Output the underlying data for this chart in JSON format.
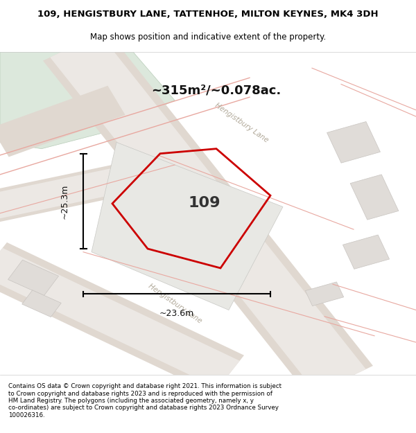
{
  "title_line1": "109, HENGISTBURY LANE, TATTENHOE, MILTON KEYNES, MK4 3DH",
  "title_line2": "Map shows position and indicative extent of the property.",
  "area_text": "~315m²/~0.078ac.",
  "label_109": "109",
  "dim_width": "~23.6m",
  "dim_height": "~25.3m",
  "footer_text": "Contains OS data © Crown copyright and database right 2021. This information is subject\nto Crown copyright and database rights 2023 and is reproduced with the permission of\nHM Land Registry. The polygons (including the associated geometry, namely x, y\nco-ordinates) are subject to Crown copyright and database rights 2023 Ordnance Survey\n100026316.",
  "map_bg": "#f0eeeb",
  "green_area": "#dce8dc",
  "red_color": "#cc0000",
  "road_outer": "#e0d8d0",
  "road_inner": "#ece8e4",
  "pink_road": "#e8a8a0",
  "building_color": "#e0dcd8",
  "building_edge": "#c8c4c0"
}
